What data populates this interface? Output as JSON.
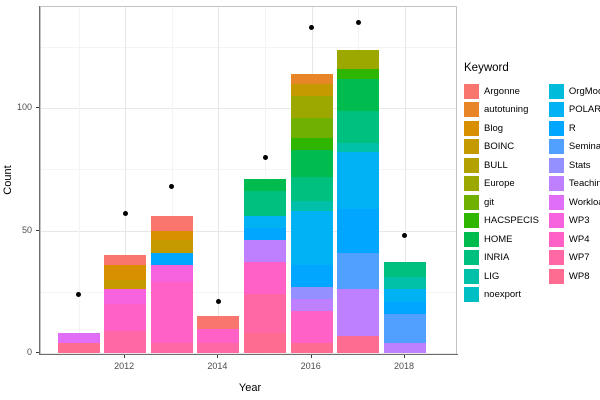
{
  "chart_data": {
    "type": "bar",
    "stacked": true,
    "title": "",
    "xlabel": "Year",
    "ylabel": "Count",
    "legend_title": "Keyword",
    "legend_position": "right",
    "grid": true,
    "ylim": [
      0,
      141
    ],
    "y_ticks_major": [
      0,
      50,
      100
    ],
    "y_ticks_minor": [
      25,
      75,
      125
    ],
    "x_tick_labels": [
      "2012",
      "2014",
      "2016",
      "2018"
    ],
    "x_ticks_major_years": [
      2012,
      2014,
      2016,
      2018
    ],
    "x_ticks_minor_years": [
      2011,
      2013,
      2015,
      2017
    ],
    "years": [
      2011,
      2012,
      2013,
      2014,
      2015,
      2016,
      2017,
      2018
    ],
    "keywords": [
      "Argonne",
      "autotuning",
      "Blog",
      "BOINC",
      "BULL",
      "Europe",
      "git",
      "HACSPECIS",
      "HOME",
      "INRIA",
      "LIG",
      "noexport",
      "OrgMode",
      "POLARIS",
      "R",
      "Seminar",
      "Stats",
      "Teaching",
      "Workload",
      "WP3",
      "WP4",
      "WP7",
      "WP8"
    ],
    "colors": {
      "Argonne": "#F8766D",
      "autotuning": "#E88526",
      "Blog": "#D89000",
      "BOINC": "#C49A00",
      "BULL": "#B2A100",
      "Europe": "#9CA700",
      "git": "#6FB000",
      "HACSPECIS": "#2FB600",
      "HOME": "#00BB4E",
      "INRIA": "#00C07F",
      "LIG": "#00C1A7",
      "noexport": "#00BFC4",
      "OrgMode": "#00BBDA",
      "POLARIS": "#00B2F3",
      "R": "#00A6FF",
      "Seminar": "#519FFF",
      "Stats": "#9590FF",
      "Teaching": "#BF80FF",
      "Workload": "#E06EF7",
      "WP3": "#F763DF",
      "WP4": "#FF61C7",
      "WP7": "#FF68A5",
      "WP8": "#FF6C91"
    },
    "bars": [
      {
        "year": 2011,
        "total": 8,
        "segments": [
          {
            "keyword": "WP8",
            "value": 4
          },
          {
            "keyword": "Workload",
            "value": 4
          }
        ]
      },
      {
        "year": 2012,
        "total": 40,
        "segments": [
          {
            "keyword": "WP7",
            "value": 9
          },
          {
            "keyword": "WP4",
            "value": 11
          },
          {
            "keyword": "WP3",
            "value": 6
          },
          {
            "keyword": "BOINC",
            "value": 4
          },
          {
            "keyword": "Blog",
            "value": 6
          },
          {
            "keyword": "Argonne",
            "value": 4
          }
        ]
      },
      {
        "year": 2013,
        "total": 56,
        "segments": [
          {
            "keyword": "WP7",
            "value": 4
          },
          {
            "keyword": "WP4",
            "value": 25
          },
          {
            "keyword": "WP3",
            "value": 7
          },
          {
            "keyword": "R",
            "value": 5
          },
          {
            "keyword": "BOINC",
            "value": 5
          },
          {
            "keyword": "Blog",
            "value": 4
          },
          {
            "keyword": "Argonne",
            "value": 6
          }
        ]
      },
      {
        "year": 2014,
        "total": 15,
        "segments": [
          {
            "keyword": "WP7",
            "value": 4
          },
          {
            "keyword": "WP4",
            "value": 6
          },
          {
            "keyword": "Argonne",
            "value": 5
          }
        ]
      },
      {
        "year": 2015,
        "total": 71,
        "segments": [
          {
            "keyword": "WP8",
            "value": 8
          },
          {
            "keyword": "WP7",
            "value": 16
          },
          {
            "keyword": "WP4",
            "value": 13
          },
          {
            "keyword": "Teaching",
            "value": 9
          },
          {
            "keyword": "R",
            "value": 5
          },
          {
            "keyword": "POLARIS",
            "value": 5
          },
          {
            "keyword": "INRIA",
            "value": 10
          },
          {
            "keyword": "HOME",
            "value": 5
          }
        ]
      },
      {
        "year": 2016,
        "total": 114,
        "segments": [
          {
            "keyword": "WP8",
            "value": 4
          },
          {
            "keyword": "WP4",
            "value": 13
          },
          {
            "keyword": "Teaching",
            "value": 5
          },
          {
            "keyword": "Stats",
            "value": 5
          },
          {
            "keyword": "R",
            "value": 9
          },
          {
            "keyword": "POLARIS",
            "value": 22
          },
          {
            "keyword": "LIG",
            "value": 4
          },
          {
            "keyword": "INRIA",
            "value": 10
          },
          {
            "keyword": "HOME",
            "value": 11
          },
          {
            "keyword": "HACSPECIS",
            "value": 5
          },
          {
            "keyword": "git",
            "value": 8
          },
          {
            "keyword": "Europe",
            "value": 9
          },
          {
            "keyword": "BOINC",
            "value": 5
          },
          {
            "keyword": "autotuning",
            "value": 4
          }
        ]
      },
      {
        "year": 2017,
        "total": 124,
        "segments": [
          {
            "keyword": "WP8",
            "value": 7
          },
          {
            "keyword": "Teaching",
            "value": 19
          },
          {
            "keyword": "Seminar",
            "value": 15
          },
          {
            "keyword": "R",
            "value": 18
          },
          {
            "keyword": "POLARIS",
            "value": 23
          },
          {
            "keyword": "LIG",
            "value": 4
          },
          {
            "keyword": "INRIA",
            "value": 13
          },
          {
            "keyword": "HOME",
            "value": 13
          },
          {
            "keyword": "HACSPECIS",
            "value": 4
          },
          {
            "keyword": "Europe",
            "value": 8
          }
        ]
      },
      {
        "year": 2018,
        "total": 37,
        "segments": [
          {
            "keyword": "Teaching",
            "value": 4
          },
          {
            "keyword": "Seminar",
            "value": 12
          },
          {
            "keyword": "R",
            "value": 5
          },
          {
            "keyword": "POLARIS",
            "value": 5
          },
          {
            "keyword": "LIG",
            "value": 5
          },
          {
            "keyword": "INRIA",
            "value": 6
          }
        ]
      }
    ],
    "points": [
      {
        "year": 2011,
        "value": 24
      },
      {
        "year": 2012,
        "value": 57
      },
      {
        "year": 2013,
        "value": 68
      },
      {
        "year": 2014,
        "value": 21
      },
      {
        "year": 2015,
        "value": 80
      },
      {
        "year": 2016,
        "value": 133
      },
      {
        "year": 2017,
        "value": 135
      },
      {
        "year": 2018,
        "value": 48
      }
    ]
  },
  "axes": {
    "x_label": "Year",
    "y_label": "Count"
  },
  "legend": {
    "title": "Keyword",
    "columns": [
      [
        "Argonne",
        "autotuning",
        "Blog",
        "BOINC",
        "BULL",
        "Europe",
        "git",
        "HACSPECIS",
        "HOME",
        "INRIA",
        "LIG",
        "noexport"
      ],
      [
        "OrgMode",
        "POLARIS",
        "R",
        "Seminar",
        "Stats",
        "Teaching",
        "Workload",
        "WP3",
        "WP4",
        "WP7",
        "WP8"
      ]
    ]
  }
}
